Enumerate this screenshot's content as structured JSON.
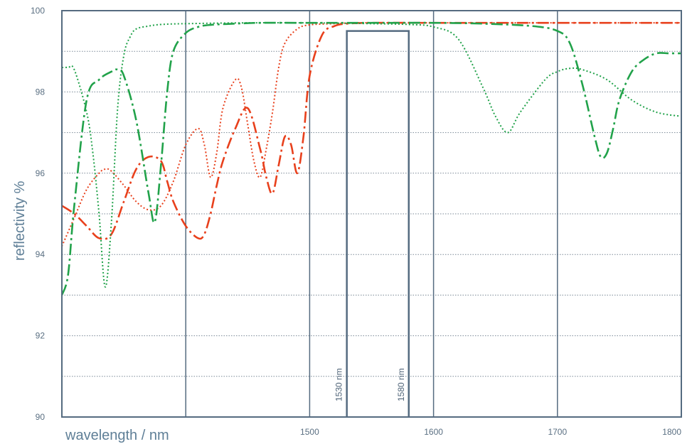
{
  "chart_data": {
    "type": "line",
    "xlabel": "wavelength / nm",
    "ylabel": "reflectivity %",
    "xlim": [
      1300,
      1800
    ],
    "ylim": [
      90,
      100
    ],
    "x_ticks": [
      1500,
      1600,
      1700,
      1800
    ],
    "x_tick_labels": [
      "1500",
      "1600",
      "1700",
      "1800"
    ],
    "x_major_lines": [
      1400,
      1500,
      1600,
      1700
    ],
    "y_ticks": [
      90,
      92,
      94,
      96,
      98,
      100
    ],
    "y_tick_labels": [
      "90",
      "92",
      "94",
      "96",
      "98",
      "100"
    ],
    "y_minor_gridlines": [
      91,
      92,
      93,
      94,
      95,
      96,
      97,
      98,
      99
    ],
    "grid": true,
    "colors": {
      "frame": "#556b80",
      "grid_minor": "#7a8896",
      "band": "#556b80",
      "axis_text": "#5f7f97",
      "red": "#e8401c",
      "green": "#21a24a"
    },
    "band": {
      "x_start": 1530,
      "x_end": 1580,
      "top": 99.5,
      "labels": [
        "1530  nm",
        "1580  nm"
      ]
    },
    "series": [
      {
        "color": "#e8401c",
        "style": "dashdot",
        "x": [
          1300,
          1310,
          1320,
          1330,
          1340,
          1350,
          1360,
          1370,
          1380,
          1385,
          1390,
          1400,
          1410,
          1415,
          1420,
          1425,
          1430,
          1440,
          1450,
          1460,
          1465,
          1470,
          1475,
          1480,
          1485,
          1490,
          1495,
          1500,
          1510,
          1520,
          1530,
          1550,
          1600,
          1650,
          1700,
          1750,
          1800
        ],
        "y": [
          95.2,
          95.0,
          94.7,
          94.4,
          94.5,
          95.3,
          96.1,
          96.4,
          96.3,
          95.8,
          95.3,
          94.7,
          94.4,
          94.5,
          95.0,
          95.7,
          96.3,
          97.1,
          97.6,
          96.6,
          95.9,
          95.5,
          96.2,
          96.9,
          96.7,
          96.0,
          96.9,
          98.4,
          99.4,
          99.62,
          99.68,
          99.7,
          99.7,
          99.7,
          99.7,
          99.7,
          99.7
        ]
      },
      {
        "color": "#e8401c",
        "style": "dotted",
        "x": [
          1300,
          1310,
          1320,
          1330,
          1335,
          1340,
          1350,
          1360,
          1370,
          1380,
          1390,
          1400,
          1410,
          1415,
          1420,
          1425,
          1430,
          1440,
          1445,
          1450,
          1455,
          1460,
          1465,
          1470,
          1475,
          1480,
          1490,
          1500,
          1520,
          1540,
          1600,
          1700,
          1800
        ],
        "y": [
          94.2,
          94.9,
          95.6,
          96.0,
          96.1,
          96.05,
          95.7,
          95.3,
          95.1,
          95.2,
          95.8,
          96.7,
          97.1,
          96.7,
          95.9,
          96.5,
          97.6,
          98.3,
          98.1,
          97.2,
          96.3,
          95.9,
          96.6,
          97.5,
          98.6,
          99.2,
          99.55,
          99.65,
          99.68,
          99.7,
          99.7,
          99.7,
          99.7
        ]
      },
      {
        "color": "#21a24a",
        "style": "dashdot",
        "x": [
          1300,
          1305,
          1310,
          1320,
          1330,
          1340,
          1345,
          1350,
          1360,
          1370,
          1375,
          1380,
          1385,
          1390,
          1400,
          1410,
          1420,
          1440,
          1460,
          1500,
          1560,
          1600,
          1640,
          1680,
          1700,
          1710,
          1720,
          1730,
          1735,
          1740,
          1745,
          1750,
          1760,
          1770,
          1780,
          1790,
          1800
        ],
        "y": [
          93.0,
          93.5,
          95.2,
          97.8,
          98.3,
          98.5,
          98.55,
          98.4,
          97.3,
          95.5,
          94.8,
          96.2,
          98.0,
          99.0,
          99.45,
          99.6,
          99.65,
          99.68,
          99.7,
          99.7,
          99.7,
          99.7,
          99.68,
          99.62,
          99.5,
          99.2,
          98.2,
          96.9,
          96.4,
          96.5,
          97.1,
          97.8,
          98.5,
          98.8,
          98.95,
          98.95,
          98.95
        ]
      },
      {
        "color": "#21a24a",
        "style": "dotted",
        "x": [
          1300,
          1305,
          1310,
          1320,
          1325,
          1330,
          1335,
          1340,
          1345,
          1350,
          1355,
          1360,
          1370,
          1380,
          1400,
          1450,
          1500,
          1550,
          1580,
          1600,
          1620,
          1640,
          1650,
          1660,
          1670,
          1690,
          1700,
          1710,
          1720,
          1740,
          1760,
          1780,
          1800
        ],
        "y": [
          98.6,
          98.6,
          98.55,
          97.5,
          96.5,
          95.0,
          93.2,
          94.8,
          97.6,
          98.9,
          99.35,
          99.55,
          99.62,
          99.66,
          99.68,
          99.7,
          99.7,
          99.68,
          99.66,
          99.6,
          99.3,
          98.1,
          97.4,
          97.0,
          97.5,
          98.3,
          98.5,
          98.58,
          98.55,
          98.3,
          97.8,
          97.5,
          97.4
        ]
      }
    ]
  }
}
